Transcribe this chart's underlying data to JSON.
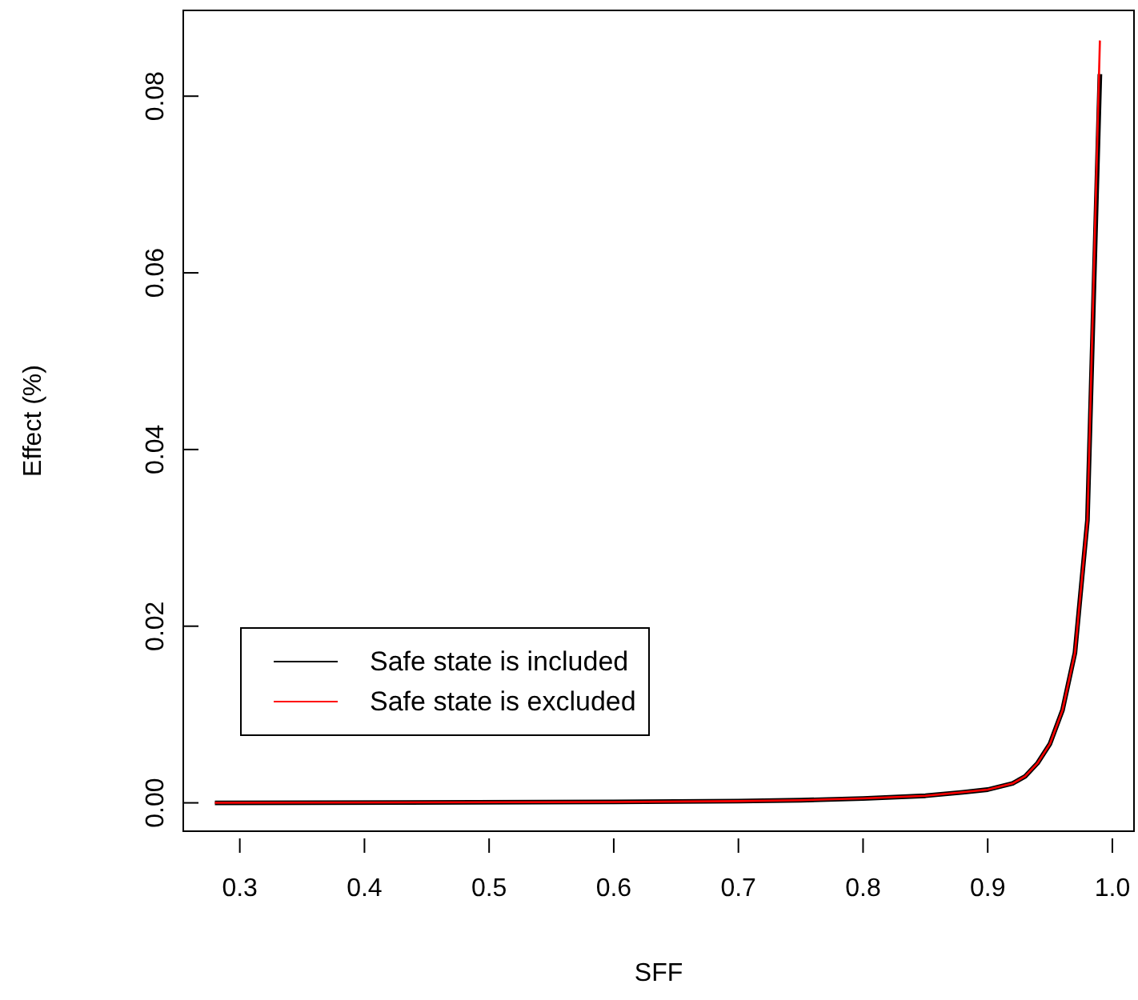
{
  "chart_data": {
    "type": "line",
    "xlabel": "SFF",
    "ylabel": "Effect (%)",
    "xlim": [
      0.254,
      1.018
    ],
    "xticks": [
      {
        "value": 0.3,
        "label": "0.3"
      },
      {
        "value": 0.4,
        "label": "0.4"
      },
      {
        "value": 0.5,
        "label": "0.5"
      },
      {
        "value": 0.6,
        "label": "0.6"
      },
      {
        "value": 0.7,
        "label": "0.7"
      },
      {
        "value": 0.8,
        "label": "0.8"
      },
      {
        "value": 0.9,
        "label": "0.9"
      },
      {
        "value": 1.0,
        "label": "1.0"
      }
    ],
    "ylim": [
      -0.0033,
      0.0898
    ],
    "yticks": [
      {
        "value": 0,
        "label": "0.00"
      },
      {
        "value": 0.02,
        "label": "0.02"
      },
      {
        "value": 0.04,
        "label": "0.04"
      },
      {
        "value": 0.06,
        "label": "0.06"
      },
      {
        "value": 0.08,
        "label": "0.08"
      }
    ],
    "x": [
      0.28,
      0.6,
      0.7,
      0.75,
      0.8,
      0.85,
      0.88,
      0.9,
      0.92,
      0.93,
      0.94,
      0.95,
      0.96,
      0.97,
      0.98,
      0.99
    ],
    "series": [
      {
        "name": "Safe state is included",
        "color": "#000000",
        "values": [
          0,
          0.0001,
          0.0002,
          0.0003,
          0.0005,
          0.0008,
          0.0012,
          0.0015,
          0.0022,
          0.003,
          0.0045,
          0.0067,
          0.0105,
          0.017,
          0.032,
          0.0825
        ]
      },
      {
        "name": "Safe state is excluded",
        "color": "#ff0000",
        "values": [
          0,
          0.0001,
          0.0002,
          0.0003,
          0.0005,
          0.0008,
          0.0012,
          0.0015,
          0.0022,
          0.003,
          0.0045,
          0.0067,
          0.0105,
          0.017,
          0.032,
          0.0863
        ]
      }
    ],
    "grid": false,
    "legend": "bottom left",
    "marker": "none",
    "line_style": "solid"
  }
}
